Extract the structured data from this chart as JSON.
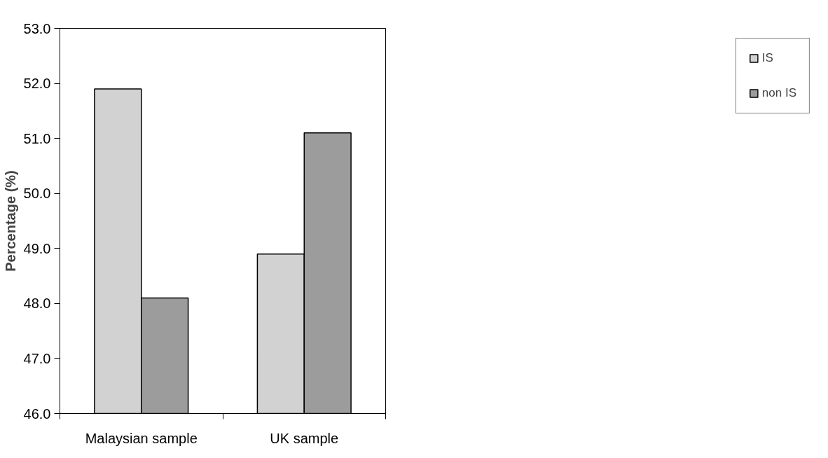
{
  "chart_data": {
    "type": "bar",
    "ylabel": "Percentage (%)",
    "categories": [
      "Malaysian sample",
      "UK sample"
    ],
    "series": [
      {
        "name": "IS",
        "color": "#d2d2d2",
        "values": [
          51.9,
          48.9
        ]
      },
      {
        "name": "non IS",
        "color": "#9c9c9c",
        "values": [
          48.1,
          51.1
        ]
      }
    ],
    "ylim": [
      46,
      53
    ],
    "yticks": [
      {
        "value": 46,
        "label": "46.0"
      },
      {
        "value": 47,
        "label": "47.0"
      },
      {
        "value": 48,
        "label": "48.0"
      },
      {
        "value": 49,
        "label": "49.0"
      },
      {
        "value": 50,
        "label": "50.0"
      },
      {
        "value": 51,
        "label": "51.0"
      },
      {
        "value": 52,
        "label": "52.0"
      },
      {
        "value": 53,
        "label": "53.0"
      }
    ],
    "grid": false,
    "legend": "right"
  }
}
